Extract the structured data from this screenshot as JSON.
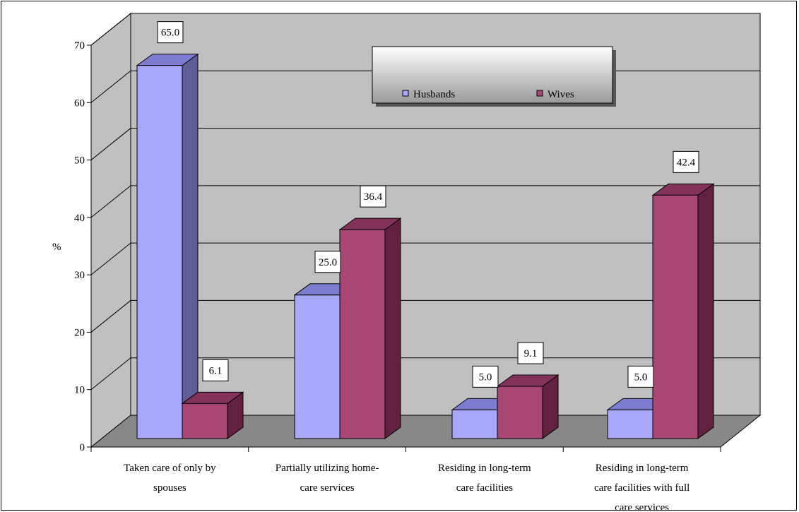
{
  "chart_data": {
    "type": "bar",
    "categories": [
      [
        "Taken care of only by",
        "spouses"
      ],
      [
        "Partially utilizing home-",
        "care services"
      ],
      [
        "Residing in long-term",
        "care facilities"
      ],
      [
        "Residing in long-term",
        "care facilities with full",
        "care services"
      ]
    ],
    "series": [
      {
        "name": "Husbands",
        "values": [
          65.0,
          25.0,
          5.0,
          5.0
        ]
      },
      {
        "name": "Wives",
        "values": [
          6.1,
          36.4,
          9.1,
          42.4
        ]
      }
    ],
    "title": "",
    "xlabel": "",
    "ylabel": "%",
    "ylim": [
      0,
      70
    ],
    "yticks": [
      0,
      10,
      20,
      30,
      40,
      50,
      60,
      70
    ],
    "grid": true,
    "legend": "top-center",
    "data_labels": [
      "65.0",
      "25.0",
      "5.0",
      "5.0",
      "6.1",
      "36.4",
      "9.1",
      "42.4"
    ],
    "colors": {
      "husbands_front": "#a8a8fa",
      "husbands_side": "#5e5e98",
      "husbands_top": "#7c7cd0",
      "wives_front": "#a84774",
      "wives_side": "#62213f",
      "wives_top": "#83325a",
      "wall": "#c0c0c0",
      "floor": "#888888"
    }
  }
}
